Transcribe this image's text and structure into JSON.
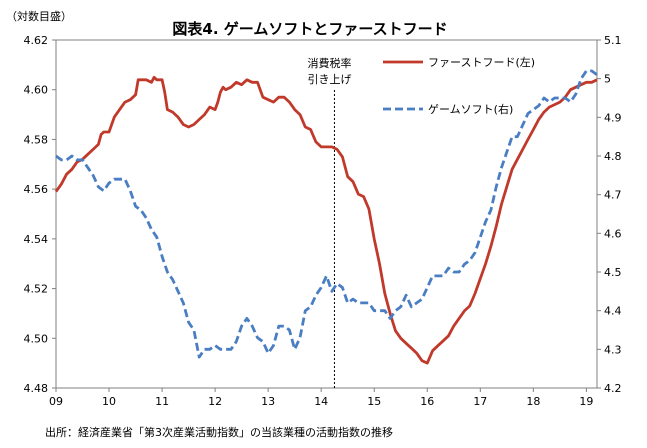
{
  "chart_data": {
    "type": "line",
    "title": "図表4. ゲームソフトとファーストフード",
    "left_axis_label": "（対数目盛）",
    "source": "出所：経済産業省「第3次産業活動指数」の当該業種の活動指数の推移",
    "annotation": "消費税率\n引き上げ",
    "annotation_x": 14.25,
    "xlim": [
      9,
      19.2
    ],
    "x_ticks": [
      9,
      10,
      11,
      12,
      13,
      14,
      15,
      16,
      17,
      18,
      19
    ],
    "x_tick_labels": [
      "09",
      "10",
      "11",
      "12",
      "13",
      "14",
      "15",
      "16",
      "17",
      "18",
      "19"
    ],
    "left_ylim": [
      4.48,
      4.62
    ],
    "left_ticks": [
      4.48,
      4.5,
      4.52,
      4.54,
      4.56,
      4.58,
      4.6,
      4.62
    ],
    "left_tick_labels": [
      "4.48",
      "4.50",
      "4.52",
      "4.54",
      "4.56",
      "4.58",
      "4.60",
      "4.62"
    ],
    "right_ylim": [
      4.2,
      5.1
    ],
    "right_ticks": [
      4.2,
      4.3,
      4.4,
      4.5,
      4.6,
      4.7,
      4.8,
      4.9,
      5.0,
      5.1
    ],
    "right_tick_labels": [
      "4.2",
      "4.3",
      "4.4",
      "4.5",
      "4.6",
      "4.7",
      "4.8",
      "4.9",
      "5",
      "5.1"
    ],
    "series": [
      {
        "name": "ファーストフード(左)",
        "axis": "left",
        "color": "#c0392b",
        "style": "solid",
        "points": [
          [
            9.0,
            4.559
          ],
          [
            9.1,
            4.562
          ],
          [
            9.2,
            4.566
          ],
          [
            9.3,
            4.568
          ],
          [
            9.4,
            4.571
          ],
          [
            9.5,
            4.572
          ],
          [
            9.6,
            4.574
          ],
          [
            9.7,
            4.576
          ],
          [
            9.8,
            4.578
          ],
          [
            9.85,
            4.582
          ],
          [
            9.9,
            4.583
          ],
          [
            10.0,
            4.583
          ],
          [
            10.1,
            4.589
          ],
          [
            10.2,
            4.592
          ],
          [
            10.3,
            4.595
          ],
          [
            10.4,
            4.596
          ],
          [
            10.5,
            4.598
          ],
          [
            10.55,
            4.604
          ],
          [
            10.6,
            4.604
          ],
          [
            10.7,
            4.604
          ],
          [
            10.8,
            4.603
          ],
          [
            10.85,
            4.605
          ],
          [
            10.9,
            4.604
          ],
          [
            11.0,
            4.604
          ],
          [
            11.05,
            4.599
          ],
          [
            11.1,
            4.592
          ],
          [
            11.2,
            4.591
          ],
          [
            11.3,
            4.589
          ],
          [
            11.4,
            4.586
          ],
          [
            11.5,
            4.585
          ],
          [
            11.6,
            4.586
          ],
          [
            11.7,
            4.588
          ],
          [
            11.8,
            4.59
          ],
          [
            11.9,
            4.593
          ],
          [
            12.0,
            4.592
          ],
          [
            12.05,
            4.595
          ],
          [
            12.1,
            4.599
          ],
          [
            12.15,
            4.601
          ],
          [
            12.2,
            4.6
          ],
          [
            12.3,
            4.601
          ],
          [
            12.4,
            4.603
          ],
          [
            12.5,
            4.602
          ],
          [
            12.6,
            4.604
          ],
          [
            12.7,
            4.603
          ],
          [
            12.8,
            4.603
          ],
          [
            12.9,
            4.597
          ],
          [
            13.0,
            4.596
          ],
          [
            13.1,
            4.595
          ],
          [
            13.2,
            4.597
          ],
          [
            13.3,
            4.597
          ],
          [
            13.4,
            4.595
          ],
          [
            13.5,
            4.592
          ],
          [
            13.6,
            4.59
          ],
          [
            13.7,
            4.585
          ],
          [
            13.8,
            4.584
          ],
          [
            13.9,
            4.579
          ],
          [
            14.0,
            4.577
          ],
          [
            14.1,
            4.577
          ],
          [
            14.2,
            4.577
          ],
          [
            14.3,
            4.576
          ],
          [
            14.4,
            4.573
          ],
          [
            14.5,
            4.565
          ],
          [
            14.6,
            4.563
          ],
          [
            14.7,
            4.558
          ],
          [
            14.8,
            4.557
          ],
          [
            14.9,
            4.552
          ],
          [
            15.0,
            4.54
          ],
          [
            15.1,
            4.53
          ],
          [
            15.2,
            4.518
          ],
          [
            15.3,
            4.51
          ],
          [
            15.4,
            4.503
          ],
          [
            15.5,
            4.5
          ],
          [
            15.6,
            4.498
          ],
          [
            15.7,
            4.496
          ],
          [
            15.8,
            4.494
          ],
          [
            15.9,
            4.491
          ],
          [
            16.0,
            4.49
          ],
          [
            16.1,
            4.495
          ],
          [
            16.2,
            4.497
          ],
          [
            16.3,
            4.499
          ],
          [
            16.4,
            4.501
          ],
          [
            16.5,
            4.505
          ],
          [
            16.6,
            4.508
          ],
          [
            16.7,
            4.511
          ],
          [
            16.8,
            4.513
          ],
          [
            16.9,
            4.518
          ],
          [
            17.0,
            4.524
          ],
          [
            17.1,
            4.53
          ],
          [
            17.2,
            4.537
          ],
          [
            17.3,
            4.545
          ],
          [
            17.4,
            4.554
          ],
          [
            17.5,
            4.561
          ],
          [
            17.6,
            4.568
          ],
          [
            17.7,
            4.572
          ],
          [
            17.8,
            4.576
          ],
          [
            17.9,
            4.58
          ],
          [
            18.0,
            4.584
          ],
          [
            18.1,
            4.588
          ],
          [
            18.2,
            4.591
          ],
          [
            18.3,
            4.593
          ],
          [
            18.4,
            4.594
          ],
          [
            18.5,
            4.595
          ],
          [
            18.6,
            4.597
          ],
          [
            18.7,
            4.6
          ],
          [
            18.8,
            4.601
          ],
          [
            18.9,
            4.602
          ],
          [
            19.0,
            4.603
          ],
          [
            19.1,
            4.603
          ],
          [
            19.2,
            4.604
          ]
        ]
      },
      {
        "name": "ゲームソフト(右)",
        "axis": "right",
        "color": "#4a7ec3",
        "style": "dashed",
        "points": [
          [
            9.0,
            4.8
          ],
          [
            9.1,
            4.79
          ],
          [
            9.2,
            4.79
          ],
          [
            9.3,
            4.8
          ],
          [
            9.4,
            4.79
          ],
          [
            9.5,
            4.79
          ],
          [
            9.6,
            4.77
          ],
          [
            9.7,
            4.75
          ],
          [
            9.8,
            4.72
          ],
          [
            9.9,
            4.71
          ],
          [
            10.0,
            4.73
          ],
          [
            10.1,
            4.74
          ],
          [
            10.2,
            4.74
          ],
          [
            10.3,
            4.74
          ],
          [
            10.4,
            4.71
          ],
          [
            10.5,
            4.67
          ],
          [
            10.6,
            4.66
          ],
          [
            10.7,
            4.64
          ],
          [
            10.8,
            4.61
          ],
          [
            10.9,
            4.59
          ],
          [
            11.0,
            4.54
          ],
          [
            11.1,
            4.5
          ],
          [
            11.2,
            4.48
          ],
          [
            11.3,
            4.45
          ],
          [
            11.4,
            4.42
          ],
          [
            11.5,
            4.37
          ],
          [
            11.6,
            4.35
          ],
          [
            11.7,
            4.28
          ],
          [
            11.8,
            4.3
          ],
          [
            11.9,
            4.3
          ],
          [
            12.0,
            4.31
          ],
          [
            12.1,
            4.3
          ],
          [
            12.2,
            4.3
          ],
          [
            12.3,
            4.3
          ],
          [
            12.4,
            4.32
          ],
          [
            12.5,
            4.36
          ],
          [
            12.6,
            4.38
          ],
          [
            12.7,
            4.36
          ],
          [
            12.8,
            4.33
          ],
          [
            12.9,
            4.32
          ],
          [
            13.0,
            4.29
          ],
          [
            13.1,
            4.31
          ],
          [
            13.2,
            4.36
          ],
          [
            13.3,
            4.36
          ],
          [
            13.4,
            4.35
          ],
          [
            13.5,
            4.3
          ],
          [
            13.6,
            4.33
          ],
          [
            13.7,
            4.4
          ],
          [
            13.8,
            4.41
          ],
          [
            13.9,
            4.44
          ],
          [
            14.0,
            4.46
          ],
          [
            14.1,
            4.49
          ],
          [
            14.2,
            4.45
          ],
          [
            14.3,
            4.47
          ],
          [
            14.4,
            4.46
          ],
          [
            14.5,
            4.42
          ],
          [
            14.6,
            4.43
          ],
          [
            14.7,
            4.42
          ],
          [
            14.8,
            4.42
          ],
          [
            14.9,
            4.42
          ],
          [
            15.0,
            4.4
          ],
          [
            15.1,
            4.4
          ],
          [
            15.2,
            4.4
          ],
          [
            15.3,
            4.38
          ],
          [
            15.4,
            4.4
          ],
          [
            15.5,
            4.41
          ],
          [
            15.6,
            4.44
          ],
          [
            15.7,
            4.41
          ],
          [
            15.8,
            4.42
          ],
          [
            15.9,
            4.43
          ],
          [
            16.0,
            4.46
          ],
          [
            16.1,
            4.49
          ],
          [
            16.2,
            4.49
          ],
          [
            16.3,
            4.49
          ],
          [
            16.4,
            4.51
          ],
          [
            16.5,
            4.5
          ],
          [
            16.6,
            4.5
          ],
          [
            16.7,
            4.52
          ],
          [
            16.8,
            4.53
          ],
          [
            16.9,
            4.55
          ],
          [
            17.0,
            4.59
          ],
          [
            17.1,
            4.63
          ],
          [
            17.2,
            4.66
          ],
          [
            17.3,
            4.72
          ],
          [
            17.4,
            4.77
          ],
          [
            17.5,
            4.81
          ],
          [
            17.6,
            4.85
          ],
          [
            17.7,
            4.85
          ],
          [
            17.8,
            4.88
          ],
          [
            17.9,
            4.91
          ],
          [
            18.0,
            4.92
          ],
          [
            18.1,
            4.93
          ],
          [
            18.2,
            4.95
          ],
          [
            18.3,
            4.94
          ],
          [
            18.4,
            4.95
          ],
          [
            18.5,
            4.95
          ],
          [
            18.6,
            4.95
          ],
          [
            18.7,
            4.94
          ],
          [
            18.8,
            4.96
          ],
          [
            18.9,
            5.0
          ],
          [
            19.0,
            5.02
          ],
          [
            19.1,
            5.02
          ],
          [
            19.2,
            5.01
          ]
        ]
      }
    ]
  }
}
